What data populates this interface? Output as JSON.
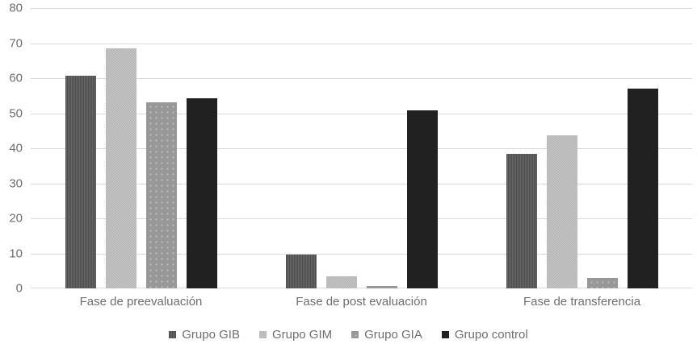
{
  "chart_data": {
    "type": "bar",
    "categories": [
      "Fase de preevaluación",
      "Fase de post evaluación",
      "Fase de transferencia"
    ],
    "series": [
      {
        "name": "Grupo GIB",
        "color": "#595959",
        "values": [
          60.6,
          9.6,
          38.3
        ]
      },
      {
        "name": "Grupo GIM",
        "color": "#c0c0c0",
        "values": [
          68.6,
          3.4,
          43.7
        ]
      },
      {
        "name": "Grupo GIA",
        "color": "#999999",
        "values": [
          53.2,
          0.8,
          3.0
        ]
      },
      {
        "name": "Grupo control",
        "color": "#212121",
        "values": [
          54.3,
          50.9,
          57.0
        ]
      }
    ],
    "title": "",
    "xlabel": "",
    "ylabel": "",
    "ylim": [
      0,
      80
    ],
    "ytick_step": 10,
    "yticks": [
      0,
      10,
      20,
      30,
      40,
      50,
      60,
      70,
      80
    ],
    "grid": true,
    "gridline_color": "#d9d9d9",
    "text_color": "#6e6e6e",
    "legend_position": "bottom"
  }
}
